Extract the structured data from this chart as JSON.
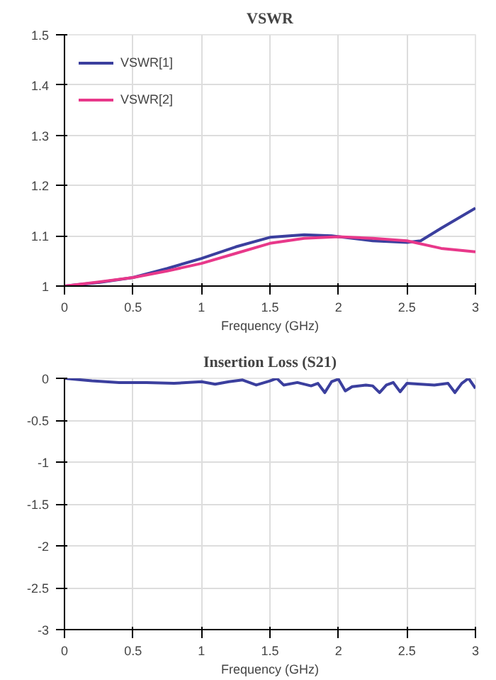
{
  "chart_data": [
    {
      "type": "line",
      "title": "VSWR",
      "xlabel": "Frequency (GHz)",
      "xlim": [
        0,
        3
      ],
      "xticks": [
        0,
        0.5,
        1,
        1.5,
        2,
        2.5,
        3
      ],
      "ylim": [
        1,
        1.5
      ],
      "yticks": [
        1,
        1.1,
        1.2,
        1.3,
        1.4,
        1.5
      ],
      "grid": true,
      "legend": "top left",
      "series": [
        {
          "name": "VSWR[1]",
          "color": "#3b3f9e",
          "x": [
            0,
            0.25,
            0.5,
            0.75,
            1,
            1.25,
            1.5,
            1.75,
            1.95,
            2.25,
            2.5,
            2.6,
            2.75,
            3
          ],
          "values": [
            1.0,
            1.007,
            1.017,
            1.035,
            1.055,
            1.078,
            1.097,
            1.102,
            1.1,
            1.09,
            1.087,
            1.09,
            1.115,
            1.155
          ]
        },
        {
          "name": "VSWR[2]",
          "color": "#e8388a",
          "x": [
            0,
            0.25,
            0.5,
            0.75,
            1,
            1.25,
            1.5,
            1.75,
            2,
            2.25,
            2.5,
            2.75,
            3
          ],
          "values": [
            1.0,
            1.008,
            1.017,
            1.03,
            1.045,
            1.065,
            1.085,
            1.095,
            1.098,
            1.095,
            1.09,
            1.075,
            1.068
          ]
        }
      ]
    },
    {
      "type": "line",
      "title": "Insertion Loss (S21)",
      "xlabel": "Frequency (GHz)",
      "xlim": [
        0,
        3
      ],
      "xticks": [
        0,
        0.5,
        1,
        1.5,
        2,
        2.5,
        3
      ],
      "ylim": [
        -3,
        0
      ],
      "yticks": [
        -3,
        -2.5,
        -2,
        -1.5,
        -1,
        -0.5,
        0
      ],
      "grid": true,
      "series": [
        {
          "color": "#3b3f9e",
          "x": [
            0,
            0.2,
            0.4,
            0.6,
            0.8,
            1.0,
            1.1,
            1.2,
            1.3,
            1.4,
            1.5,
            1.55,
            1.6,
            1.7,
            1.8,
            1.85,
            1.9,
            1.95,
            2.0,
            2.05,
            2.1,
            2.2,
            2.25,
            2.3,
            2.35,
            2.4,
            2.45,
            2.5,
            2.6,
            2.7,
            2.8,
            2.85,
            2.9,
            2.95,
            3.0
          ],
          "values": [
            0,
            -0.03,
            -0.05,
            -0.05,
            -0.06,
            -0.04,
            -0.07,
            -0.04,
            -0.02,
            -0.08,
            -0.03,
            0,
            -0.08,
            -0.05,
            -0.09,
            -0.06,
            -0.17,
            -0.04,
            -0.01,
            -0.15,
            -0.1,
            -0.08,
            -0.09,
            -0.17,
            -0.08,
            -0.05,
            -0.16,
            -0.06,
            -0.07,
            -0.08,
            -0.06,
            -0.17,
            -0.06,
            0,
            -0.12
          ]
        }
      ]
    }
  ]
}
